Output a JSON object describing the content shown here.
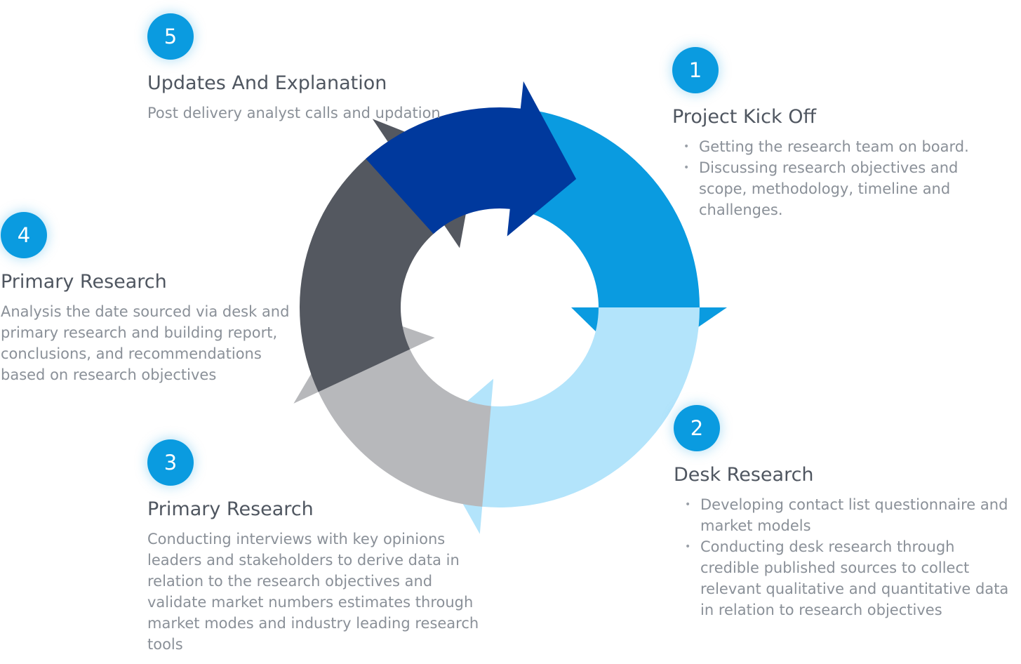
{
  "colors": {
    "badge": "#0a9be0",
    "segment_1": "#0a9be0",
    "segment_2": "#b3e4fb",
    "segment_3": "#b7b8bb",
    "segment_4": "#545860",
    "segment_5": "#00399d"
  },
  "steps": [
    {
      "number": "1",
      "title": "Project Kick Off",
      "items": [
        "Getting the research team on board.",
        "Discussing research objectives and scope, methodology, timeline and challenges."
      ]
    },
    {
      "number": "2",
      "title": "Desk Research",
      "items": [
        "Developing contact list questionnaire and market models",
        "Conducting desk research through credible published sources to collect relevant qualitative and quantitative data in relation to research objectives"
      ]
    },
    {
      "number": "3",
      "title": "Primary Research",
      "description": "Conducting interviews with key opinions leaders and stakeholders to derive data in relation to the research objectives and validate market numbers estimates through market modes and industry leading research tools"
    },
    {
      "number": "4",
      "title": "Primary Research",
      "description": "Analysis the date sourced via desk and primary research and building report, conclusions, and recommendations based on research objectives"
    },
    {
      "number": "5",
      "title": "Updates And Explanation",
      "description": "Post delivery analyst calls and updation"
    }
  ]
}
